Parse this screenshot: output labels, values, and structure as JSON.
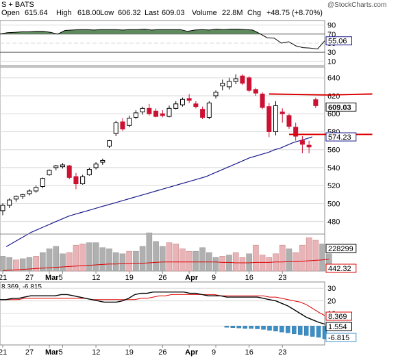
{
  "header": {
    "symbol_line": "S + BATS",
    "open_label": "Open",
    "open_value": "615.64",
    "high_label": "High",
    "high_value": "618.00",
    "low_label": "Low",
    "low_value": "606.32",
    "last_label": "Last",
    "last_value": "609.03",
    "volume_label": "Volume",
    "volume_value": "22.8M",
    "chg_label": "Chg",
    "chg_value": "+48.75 (+8.70%)",
    "watermark": "@StockCharts.com"
  },
  "colors": {
    "up": "#000000",
    "down": "#cc1133",
    "ma": "#1a1a8c",
    "rsi_fill": "#5e8a5e",
    "vol_up": "#b0b0b0",
    "vol_down": "#e8b4b8",
    "trend": "#dd0000",
    "macd_line": "#000000",
    "signal": "#dd0000",
    "hist": "#3b8fc7",
    "grid": "#d8d8d8"
  },
  "chart_data": [
    {
      "type": "line",
      "panel": "rsi",
      "yticks": [
        10,
        30,
        50,
        70,
        90
      ],
      "ylim": [
        0,
        100
      ],
      "last_label": "55.06",
      "values": [
        70,
        73,
        74,
        75,
        75,
        76,
        76,
        74,
        70,
        78,
        79,
        80,
        80,
        79,
        80,
        80,
        80,
        79,
        80,
        80,
        81,
        79,
        80,
        80,
        80,
        80,
        76,
        79,
        80,
        79,
        81,
        80,
        81,
        81,
        80,
        79,
        71,
        62,
        61,
        50,
        53,
        44,
        40,
        39,
        37,
        55
      ]
    },
    {
      "type": "candlestick",
      "panel": "price",
      "yticks": [
        480,
        500,
        520,
        540,
        560,
        580,
        600,
        620,
        640
      ],
      "ylim": [
        466,
        652
      ],
      "last_value": "609.03",
      "ma_label": "574.23",
      "candles": [
        {
          "o": 492,
          "h": 500,
          "l": 487,
          "c": 498
        },
        {
          "o": 498,
          "h": 506,
          "l": 495,
          "c": 504
        },
        {
          "o": 505,
          "h": 509,
          "l": 502,
          "c": 508
        },
        {
          "o": 508,
          "h": 511,
          "l": 505,
          "c": 510
        },
        {
          "o": 511,
          "h": 516,
          "l": 509,
          "c": 514
        },
        {
          "o": 514,
          "h": 520,
          "l": 512,
          "c": 518
        },
        {
          "o": 519,
          "h": 529,
          "l": 517,
          "c": 528
        },
        {
          "o": 532,
          "h": 538,
          "l": 531,
          "c": 537
        },
        {
          "o": 540,
          "h": 543,
          "l": 537,
          "c": 542
        },
        {
          "o": 541,
          "h": 545,
          "l": 539,
          "c": 543
        },
        {
          "o": 542,
          "h": 543,
          "l": 527,
          "c": 529
        },
        {
          "o": 530,
          "h": 534,
          "l": 516,
          "c": 522
        },
        {
          "o": 522,
          "h": 532,
          "l": 521,
          "c": 530
        },
        {
          "o": 532,
          "h": 540,
          "l": 531,
          "c": 538
        },
        {
          "o": 540,
          "h": 546,
          "l": 538,
          "c": 544
        },
        {
          "o": 546,
          "h": 550,
          "l": 543,
          "c": 548
        },
        {
          "o": 564,
          "h": 571,
          "l": 562,
          "c": 570
        },
        {
          "o": 578,
          "h": 592,
          "l": 575,
          "c": 590
        },
        {
          "o": 591,
          "h": 595,
          "l": 581,
          "c": 583
        },
        {
          "o": 587,
          "h": 598,
          "l": 585,
          "c": 595
        },
        {
          "o": 596,
          "h": 604,
          "l": 594,
          "c": 601
        },
        {
          "o": 602,
          "h": 608,
          "l": 599,
          "c": 606
        },
        {
          "o": 606,
          "h": 611,
          "l": 598,
          "c": 600
        },
        {
          "o": 603,
          "h": 606,
          "l": 596,
          "c": 597
        },
        {
          "o": 600,
          "h": 604,
          "l": 596,
          "c": 598
        },
        {
          "o": 597,
          "h": 609,
          "l": 596,
          "c": 606
        },
        {
          "o": 606,
          "h": 614,
          "l": 605,
          "c": 611
        },
        {
          "o": 610,
          "h": 618,
          "l": 608,
          "c": 616
        },
        {
          "o": 617,
          "h": 622,
          "l": 612,
          "c": 615
        },
        {
          "o": 611,
          "h": 614,
          "l": 606,
          "c": 608
        },
        {
          "o": 605,
          "h": 608,
          "l": 594,
          "c": 596
        },
        {
          "o": 596,
          "h": 614,
          "l": 594,
          "c": 612
        },
        {
          "o": 620,
          "h": 626,
          "l": 617,
          "c": 624
        },
        {
          "o": 631,
          "h": 638,
          "l": 626,
          "c": 634
        },
        {
          "o": 630,
          "h": 640,
          "l": 627,
          "c": 636
        },
        {
          "o": 636,
          "h": 644,
          "l": 633,
          "c": 639
        },
        {
          "o": 642,
          "h": 644,
          "l": 632,
          "c": 634
        },
        {
          "o": 640,
          "h": 642,
          "l": 624,
          "c": 626
        },
        {
          "o": 627,
          "h": 629,
          "l": 620,
          "c": 623
        },
        {
          "o": 622,
          "h": 624,
          "l": 605,
          "c": 607
        },
        {
          "o": 608,
          "h": 612,
          "l": 574,
          "c": 580
        },
        {
          "o": 580,
          "h": 614,
          "l": 576,
          "c": 609
        },
        {
          "o": 602,
          "h": 606,
          "l": 590,
          "c": 600
        },
        {
          "o": 598,
          "h": 600,
          "l": 583,
          "c": 586
        },
        {
          "o": 585,
          "h": 590,
          "l": 570,
          "c": 575
        },
        {
          "o": 570,
          "h": 575,
          "l": 556,
          "c": 566
        },
        {
          "o": 565,
          "h": 570,
          "l": 556,
          "c": 563
        },
        {
          "o": 615.64,
          "h": 618.0,
          "l": 606.32,
          "c": 609.03
        }
      ],
      "ma": [
        452,
        456,
        460,
        464,
        468,
        471,
        474,
        477,
        480,
        483,
        486,
        488,
        490,
        492,
        494,
        496,
        498,
        500,
        502,
        504,
        506,
        508,
        510,
        512,
        514,
        516,
        518,
        520,
        522,
        524,
        526,
        528,
        530,
        533,
        536,
        539,
        542,
        545,
        548,
        551,
        553,
        555,
        557,
        560,
        562,
        565,
        568,
        570,
        572,
        574.23
      ],
      "trendlines": [
        {
          "points": [
            [
              40,
              622
            ],
            [
              49,
              621
            ],
            [
              55.5,
              622
            ]
          ]
        },
        {
          "points": [
            [
              43,
              577
            ],
            [
              55.5,
              577
            ]
          ]
        }
      ]
    },
    {
      "type": "bar",
      "panel": "volume",
      "last_label": "228299",
      "ma_label": "442.32",
      "values": [
        12,
        11,
        9,
        10,
        11,
        12,
        15,
        18,
        20,
        14,
        15,
        21,
        22,
        23,
        23,
        19,
        18,
        15,
        14,
        16,
        16,
        20,
        31,
        24,
        20,
        23,
        22,
        18,
        16,
        16,
        19,
        15,
        11,
        12,
        13,
        15,
        11,
        14,
        21,
        13,
        11,
        14,
        21,
        18,
        15,
        21,
        27,
        25,
        22,
        14
      ],
      "down": [
        false,
        false,
        true,
        false,
        false,
        true,
        false,
        false,
        false,
        false,
        true,
        true,
        true,
        false,
        false,
        false,
        false,
        false,
        false,
        true,
        false,
        false,
        false,
        false,
        false,
        true,
        true,
        true,
        true,
        false,
        false,
        false,
        false,
        true,
        false,
        true,
        true,
        false,
        true,
        true,
        true,
        true,
        true,
        false,
        true,
        true,
        true,
        true,
        false,
        false
      ],
      "ma": [
        1,
        2,
        3,
        4,
        5,
        6,
        7,
        8,
        9,
        10,
        11,
        12,
        13,
        14,
        15,
        16,
        17,
        17,
        18,
        18,
        19,
        19,
        20,
        21,
        22,
        22,
        22,
        22,
        22,
        22,
        22,
        22,
        22,
        21,
        21,
        20,
        20,
        20,
        21,
        21,
        21,
        22,
        22,
        23,
        23,
        24,
        25,
        26,
        27,
        29
      ]
    },
    {
      "type": "line",
      "panel": "macd",
      "header_line": "8.369, -6.815",
      "yticks": [
        0,
        10,
        20,
        30
      ],
      "ylim": [
        -15,
        35
      ],
      "macd_label": "1.554",
      "signal_label": "8.369",
      "hist_label": "-6.815",
      "macd": [
        21,
        21,
        22,
        22,
        23,
        24,
        24,
        24,
        24,
        24,
        25,
        25,
        24,
        23,
        22,
        21,
        20,
        19,
        19,
        19,
        20,
        22,
        25,
        26,
        26,
        27,
        27,
        27,
        27,
        27,
        27,
        26,
        26,
        25,
        24,
        24,
        24,
        23,
        23,
        23,
        23,
        23,
        23,
        22,
        21,
        20,
        18,
        16,
        13,
        10,
        7,
        5,
        3,
        1.554
      ],
      "signal": [
        21,
        21,
        21,
        21,
        22,
        22,
        22,
        22,
        22,
        22,
        22,
        22,
        22,
        22,
        22,
        21,
        21,
        21,
        21,
        21,
        21,
        21,
        21,
        22,
        22,
        23,
        24,
        24,
        25,
        25,
        25,
        25,
        25,
        25,
        25,
        25,
        24,
        24,
        24,
        24,
        24,
        24,
        24,
        24,
        23,
        23,
        22,
        21,
        20,
        19,
        17,
        14,
        11,
        8.369
      ],
      "hist": [
        0,
        0,
        0,
        0,
        0,
        0,
        0,
        0,
        0,
        0,
        0,
        0,
        0,
        0,
        0,
        0,
        0,
        0,
        0,
        0,
        0,
        0,
        0,
        0,
        0,
        0,
        0,
        0,
        0,
        0,
        0,
        0,
        0,
        0,
        0,
        0,
        0,
        -0.3,
        -0.5,
        -0.7,
        -1,
        -1,
        -1.2,
        -1.5,
        -2,
        -2.5,
        -3,
        -3.5,
        -4,
        -4.5,
        -5,
        -5.5,
        -6,
        -6.815
      ]
    }
  ],
  "x_axis": {
    "ticks": [
      {
        "i": 0,
        "label": "21"
      },
      {
        "i": 4,
        "label": "27"
      },
      {
        "i": 7,
        "label": "Mar"
      },
      {
        "i": 9,
        "label": "5"
      },
      {
        "i": 14,
        "label": "12"
      },
      {
        "i": 19,
        "label": "19"
      },
      {
        "i": 24,
        "label": "26"
      },
      {
        "i": 28,
        "label": "Apr"
      },
      {
        "i": 32,
        "label": "9"
      },
      {
        "i": 37,
        "label": "16"
      },
      {
        "i": 42,
        "label": "23"
      }
    ]
  }
}
